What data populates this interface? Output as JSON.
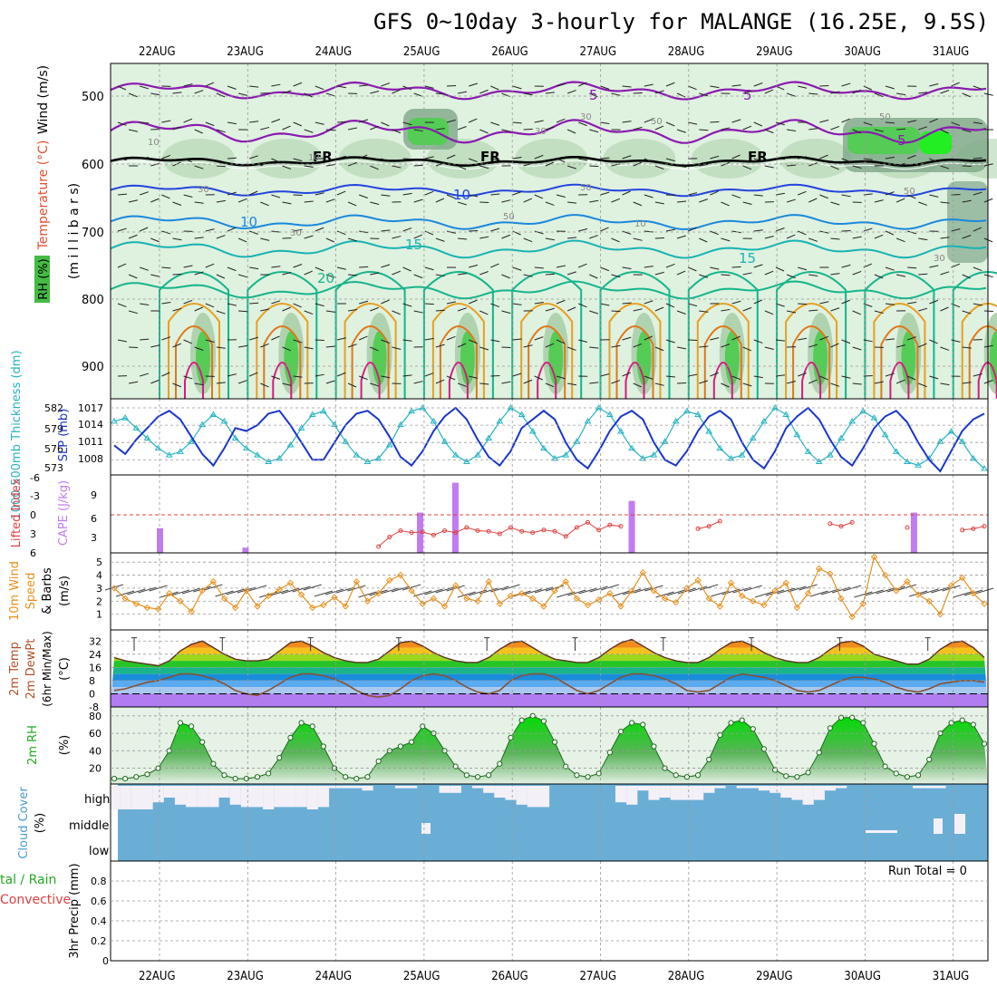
{
  "title": "GFS 0~10day 3-hourly for MALANGE (16.25E, 9.5S)",
  "dates": [
    "22AUG",
    "23AUG",
    "24AUG",
    "25AUG",
    "26AUG",
    "27AUG",
    "28AUG",
    "29AUG",
    "30AUG",
    "31AUG"
  ],
  "colors": {
    "rh_light": "#dff1df",
    "rh_mid": "#aacfaa",
    "rh_dark": "#7fa88a",
    "rh_green": "#55cc55",
    "temp_purple": "#8a1ab0",
    "temp_blue1": "#2244dd",
    "temp_blue2": "#1a88dd",
    "temp_teal": "#17b3b3",
    "temp_green": "#15b58a",
    "temp_orange": "#e8a020",
    "temp_red": "#d81a80",
    "slp": "#1a36c8",
    "thick": "#24b4c4",
    "cape": "#c07cf0",
    "li": "#e04040",
    "wind": "#e8901c",
    "cloud": "#6aaed6",
    "precip_green": "#22aa22"
  },
  "panels": {
    "upper": {
      "ylabel_wind": "Wind (m/s)",
      "ylabel_temp": "Temperature (°C)",
      "ylabel_mb": "(m i l l i b a r s)",
      "ylabel_rh": "RH (%)",
      "y_ticks": [
        "500",
        "600",
        "700",
        "800",
        "900"
      ],
      "contour_labels": [
        "5",
        "5",
        "5",
        "10",
        "10",
        "15",
        "15",
        "20",
        "FR",
        "FR",
        "FR",
        "10",
        "30",
        "50",
        "30",
        "50",
        "50",
        "30",
        "30",
        "30",
        "50",
        "10",
        "10",
        "50"
      ]
    },
    "slp": {
      "ylabel_thick": "1000-500mb Thickness (dm)",
      "ylabel_slp": "SLP (mb)",
      "thick_ticks": [
        "582",
        "579",
        "576",
        "573"
      ],
      "slp_ticks": [
        "1017",
        "1014",
        "1011",
        "1008"
      ]
    },
    "cape": {
      "ylabel_li": "Lifted Index",
      "ylabel_cape": "CAPE (J/kg)",
      "li_ticks": [
        "-6",
        "-3",
        "0",
        "3",
        "6"
      ],
      "cape_ticks": [
        "9",
        "6",
        "3"
      ]
    },
    "wind10": {
      "ylabel1": "10m Wind",
      "ylabel2": "Speed",
      "ylabel3": "& Barbs",
      "ylabel4": "(m/s)",
      "ticks": [
        "5",
        "4",
        "3",
        "2",
        "1"
      ]
    },
    "temp2m": {
      "ylabel1": "2m Temp",
      "ylabel2": "2m DewPt",
      "ylabel3": "(6hr Min/Max)",
      "ylabel4": "(°C)",
      "ticks": [
        "32",
        "24",
        "16",
        "8",
        "0",
        "-8"
      ]
    },
    "rh2m": {
      "ylabel1": "2m RH",
      "ylabel2": "(%)",
      "ticks": [
        "80",
        "60",
        "40",
        "20"
      ]
    },
    "cloud": {
      "ylabel1": "Cloud Cover",
      "ylabel2": "(%)",
      "levels": [
        "high",
        "middle",
        "low"
      ]
    },
    "precip": {
      "ylabel1": "tal / Rain",
      "ylabel2": "Convective",
      "ylabel3": "3hr Precip (mm)",
      "ticks": [
        "0.8",
        "0.6",
        "0.4",
        "0.2",
        "0"
      ],
      "run_total": "Run Total = 0"
    }
  },
  "chart_data": [
    {
      "type": "line",
      "name_hint": "slp_thickness",
      "x_step_hours": 3,
      "series": [
        {
          "name": "SLP (mb)",
          "values": [
            1010.5,
            1009.0,
            1011.5,
            1013.5,
            1015.5,
            1016.5,
            1015.0,
            1012.0,
            1009.0,
            1007.0,
            1010.0,
            1013.5,
            1013.0,
            1014.0,
            1016.0,
            1016.5,
            1014.0,
            1011.0,
            1008.0,
            1008.0,
            1011.0,
            1014.0,
            1016.0,
            1016.5,
            1015.0,
            1012.0,
            1008.5,
            1007.0,
            1009.5,
            1013.0,
            1015.5,
            1017.0,
            1015.0,
            1011.5,
            1008.5,
            1007.0,
            1009.5,
            1013.5,
            1015.0,
            1016.5,
            1015.0,
            1011.0,
            1008.0,
            1006.5,
            1009.5,
            1013.0,
            1015.5,
            1016.5,
            1015.0,
            1011.0,
            1008.0,
            1007.0,
            1009.5,
            1013.0,
            1015.5,
            1016.5,
            1015.0,
            1011.0,
            1008.0,
            1006.5,
            1009.5,
            1013.5,
            1015.5,
            1017.0,
            1015.0,
            1011.5,
            1008.5,
            1007.0,
            1010.0,
            1013.5,
            1015.5,
            1016.5,
            1014.5,
            1011.0,
            1008.0,
            1006.0,
            1009.5,
            1013.0,
            1015.0,
            1016.0
          ]
        },
        {
          "name": "1000-500mb Thickness (dm)",
          "values": [
            580.0,
            580.5,
            579.0,
            577.5,
            576.0,
            575.0,
            575.5,
            577.0,
            579.5,
            581.0,
            580.0,
            577.5,
            576.0,
            575.0,
            574.0,
            574.5,
            576.5,
            579.0,
            581.0,
            581.5,
            579.5,
            577.0,
            575.0,
            574.0,
            574.5,
            576.5,
            579.5,
            581.5,
            582.0,
            580.0,
            577.0,
            575.0,
            574.0,
            575.0,
            577.5,
            580.0,
            582.0,
            581.0,
            578.5,
            576.0,
            574.5,
            575.0,
            577.0,
            580.0,
            582.0,
            581.0,
            578.5,
            576.0,
            574.5,
            575.0,
            577.0,
            580.0,
            581.5,
            581.0,
            578.5,
            576.0,
            574.5,
            575.0,
            577.5,
            580.0,
            582.0,
            581.0,
            578.0,
            575.5,
            574.0,
            575.0,
            577.5,
            580.0,
            581.5,
            580.5,
            578.0,
            575.5,
            574.0,
            573.5,
            574.5,
            577.0,
            578.5,
            577.0,
            574.5,
            573.0
          ]
        }
      ]
    },
    {
      "type": "bar",
      "name_hint": "cape",
      "ylim": [
        0,
        12
      ],
      "bars": [
        {
          "x_day": 0.0,
          "value": 3.8
        },
        {
          "x_day": 0.97,
          "value": 0.8
        },
        {
          "x_day": 2.95,
          "value": 6.2
        },
        {
          "x_day": 3.35,
          "value": 10.8
        },
        {
          "x_day": 5.35,
          "value": 8.0
        },
        {
          "x_day": 8.55,
          "value": 6.2
        }
      ]
    },
    {
      "type": "line",
      "name_hint": "lifted_index",
      "values": [
        null,
        null,
        null,
        null,
        null,
        null,
        null,
        null,
        null,
        null,
        null,
        null,
        null,
        null,
        null,
        null,
        null,
        null,
        null,
        null,
        null,
        null,
        null,
        null,
        5.0,
        3.5,
        2.5,
        2.8,
        2.7,
        3.2,
        2.5,
        2.8,
        2.0,
        2.5,
        2.6,
        3.0,
        2.0,
        2.6,
        2.8,
        2.4,
        2.6,
        3.4,
        2.0,
        1.2,
        2.4,
        1.6,
        1.8,
        null,
        null,
        null,
        null,
        null,
        null,
        2.2,
        1.8,
        1.0,
        null,
        null,
        null,
        null,
        null,
        null,
        null,
        null,
        null,
        1.4,
        1.8,
        1.2,
        null,
        null,
        null,
        null,
        2.0,
        null,
        null,
        null,
        null,
        2.4,
        2.2,
        1.8
      ]
    },
    {
      "type": "line",
      "name_hint": "wind10m_speed",
      "ylim": [
        0,
        5.5
      ],
      "values": [
        3.0,
        2.2,
        1.8,
        1.5,
        1.4,
        2.6,
        2.0,
        1.2,
        2.8,
        3.5,
        2.2,
        1.5,
        2.8,
        1.6,
        2.4,
        2.9,
        3.4,
        2.5,
        1.5,
        1.7,
        2.3,
        1.6,
        3.5,
        2.0,
        2.6,
        3.6,
        4.0,
        2.8,
        1.8,
        2.2,
        1.6,
        3.2,
        2.2,
        2.0,
        3.5,
        1.8,
        2.4,
        2.6,
        2.2,
        1.6,
        2.8,
        3.5,
        2.2,
        1.7,
        2.1,
        2.6,
        1.6,
        2.8,
        4.2,
        2.8,
        2.2,
        1.9,
        3.0,
        3.6,
        2.2,
        1.6,
        3.4,
        2.4,
        2.0,
        1.7,
        2.8,
        3.4,
        1.5,
        2.6,
        4.5,
        4.1,
        2.2,
        0.8,
        1.8,
        5.4,
        4.0,
        2.8,
        3.5,
        2.5,
        2.0,
        1.0,
        3.2,
        3.8,
        2.6,
        1.8
      ]
    },
    {
      "type": "area",
      "name_hint": "temp2m",
      "ylim": [
        -8,
        36
      ],
      "temp_values": [
        22,
        20,
        19,
        18,
        17,
        20,
        26,
        30,
        32,
        28,
        24,
        21,
        20,
        20,
        21,
        26,
        31,
        32,
        29,
        25,
        22,
        20,
        19,
        19,
        21,
        26,
        31,
        32,
        29,
        25,
        22,
        20,
        19,
        19,
        22,
        27,
        31,
        32,
        28,
        24,
        21,
        20,
        19,
        19,
        22,
        27,
        31,
        33,
        29,
        25,
        22,
        20,
        19,
        19,
        22,
        27,
        31,
        32,
        29,
        25,
        22,
        20,
        19,
        19,
        22,
        27,
        31,
        32,
        29,
        24,
        22,
        20,
        18,
        18,
        21,
        27,
        31,
        32,
        28,
        22
      ],
      "dewpt_values": [
        2,
        3,
        5,
        7,
        8,
        10,
        12,
        12,
        11,
        9,
        6,
        2,
        0,
        -1,
        2,
        6,
        10,
        12,
        12,
        11,
        9,
        6,
        2,
        -1,
        -2,
        -1,
        3,
        8,
        11,
        12,
        11,
        8,
        4,
        1,
        0,
        2,
        8,
        11,
        12,
        12,
        10,
        6,
        2,
        0,
        2,
        6,
        10,
        12,
        12,
        11,
        9,
        6,
        2,
        1,
        2,
        6,
        10,
        12,
        11,
        10,
        8,
        5,
        2,
        1,
        2,
        5,
        8,
        10,
        10,
        9,
        7,
        4,
        2,
        1,
        3,
        6,
        7,
        8,
        8,
        7
      ]
    },
    {
      "type": "area",
      "name_hint": "rh2m",
      "ylim": [
        5,
        85
      ],
      "values": [
        8,
        8,
        10,
        13,
        20,
        40,
        72,
        68,
        50,
        25,
        12,
        8,
        8,
        10,
        14,
        32,
        55,
        72,
        68,
        45,
        20,
        10,
        8,
        10,
        28,
        40,
        45,
        50,
        68,
        60,
        40,
        22,
        12,
        10,
        12,
        25,
        55,
        75,
        80,
        74,
        50,
        22,
        12,
        10,
        14,
        38,
        62,
        72,
        70,
        45,
        20,
        12,
        10,
        12,
        30,
        58,
        72,
        75,
        65,
        42,
        18,
        11,
        10,
        15,
        38,
        66,
        78,
        78,
        72,
        48,
        22,
        14,
        10,
        12,
        30,
        60,
        72,
        75,
        70,
        48
      ]
    }
  ]
}
